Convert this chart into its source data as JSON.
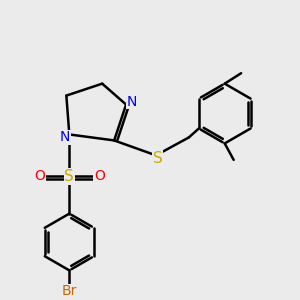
{
  "background_color": "#ebebeb",
  "atom_colors": {
    "C": "#000000",
    "N": "#0000ff",
    "S": "#ccaa00",
    "O": "#ff0000",
    "Br": "#cc6600",
    "H": "#000000"
  },
  "bond_color": "#000000",
  "bond_width": 1.8,
  "font_size": 10
}
